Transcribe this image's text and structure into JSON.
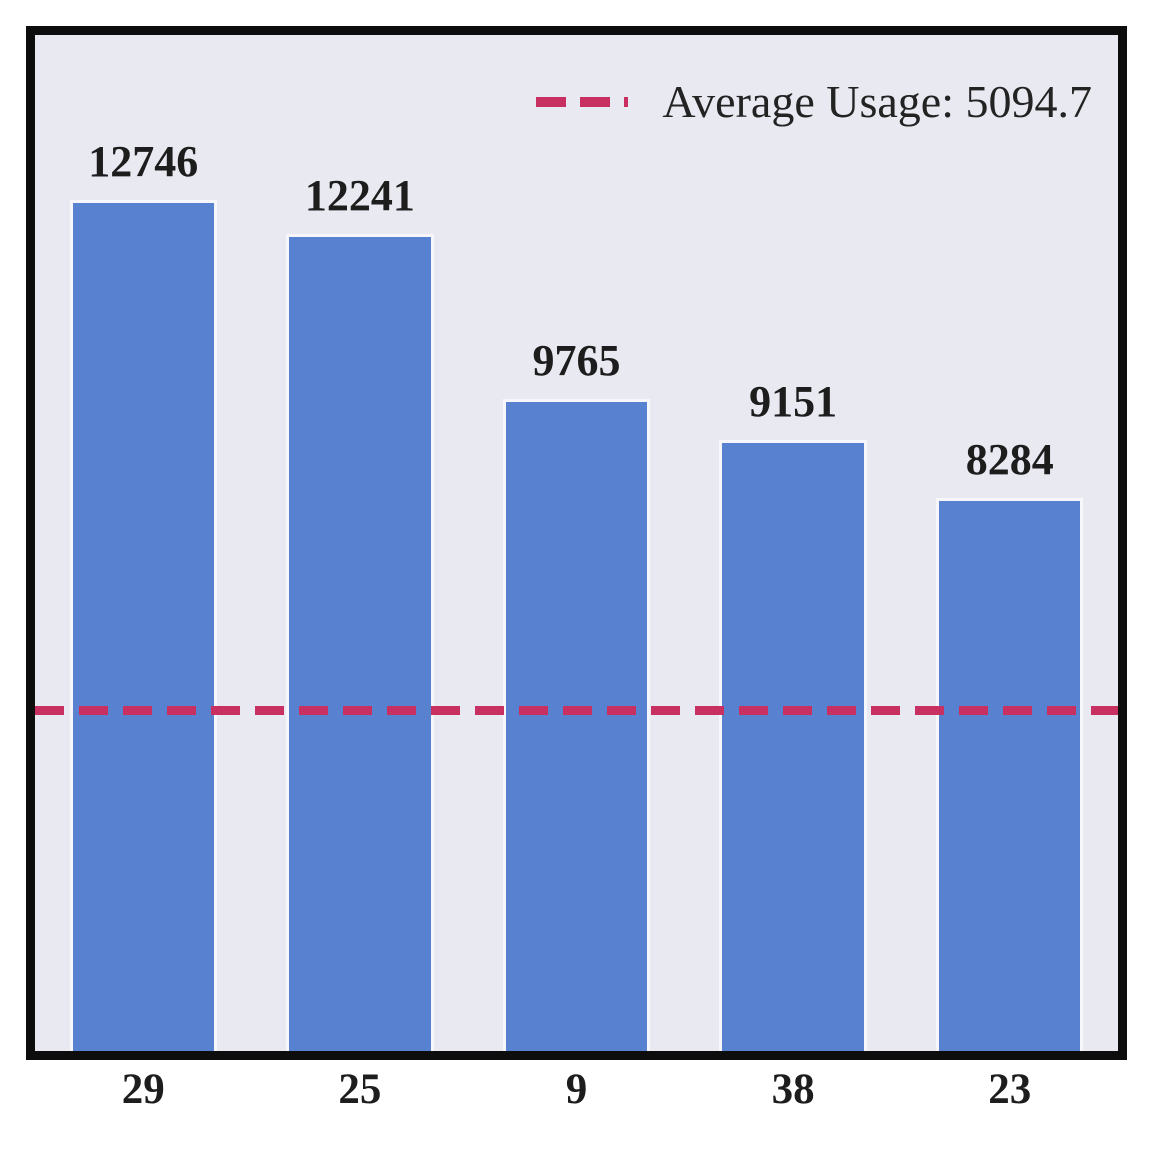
{
  "chart_data": {
    "type": "bar",
    "categories": [
      "29",
      "25",
      "9",
      "38",
      "23"
    ],
    "values": [
      12746,
      12241,
      9765,
      9151,
      8284
    ],
    "title": "",
    "xlabel": "",
    "ylabel": "",
    "ylim": [
      0,
      15220
    ],
    "grid": false,
    "legend_position": "upper right",
    "average_line": {
      "label": "Average Usage: 5094.7",
      "value": 5094.7,
      "style": "dashed"
    },
    "colors": {
      "bar_fill": "#5881d0",
      "bar_edge": "#f6f6fb",
      "average_line": "#c93062",
      "plot_background": "#e9e9f1",
      "frame_border": "#0d0d0d",
      "text": "#1d1d1d"
    }
  }
}
